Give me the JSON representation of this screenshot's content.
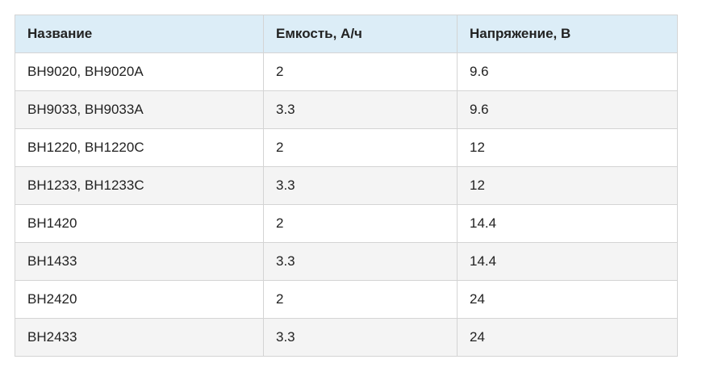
{
  "table": {
    "header": [
      "Название",
      "Емкость, А/ч",
      "Напряжение, В"
    ],
    "rows": [
      [
        "BH9020, BH9020A",
        "2",
        "9.6"
      ],
      [
        "BH9033, BH9033A",
        "3.3",
        "9.6"
      ],
      [
        "BH1220, BH1220C",
        "2",
        "12"
      ],
      [
        "BH1233, BH1233C",
        "3.3",
        "12"
      ],
      [
        "BH1420",
        "2",
        "14.4"
      ],
      [
        "BH1433",
        "3.3",
        "14.4"
      ],
      [
        "BH2420",
        "2",
        "24"
      ],
      [
        "BH2433",
        "3.3",
        "24"
      ]
    ]
  }
}
